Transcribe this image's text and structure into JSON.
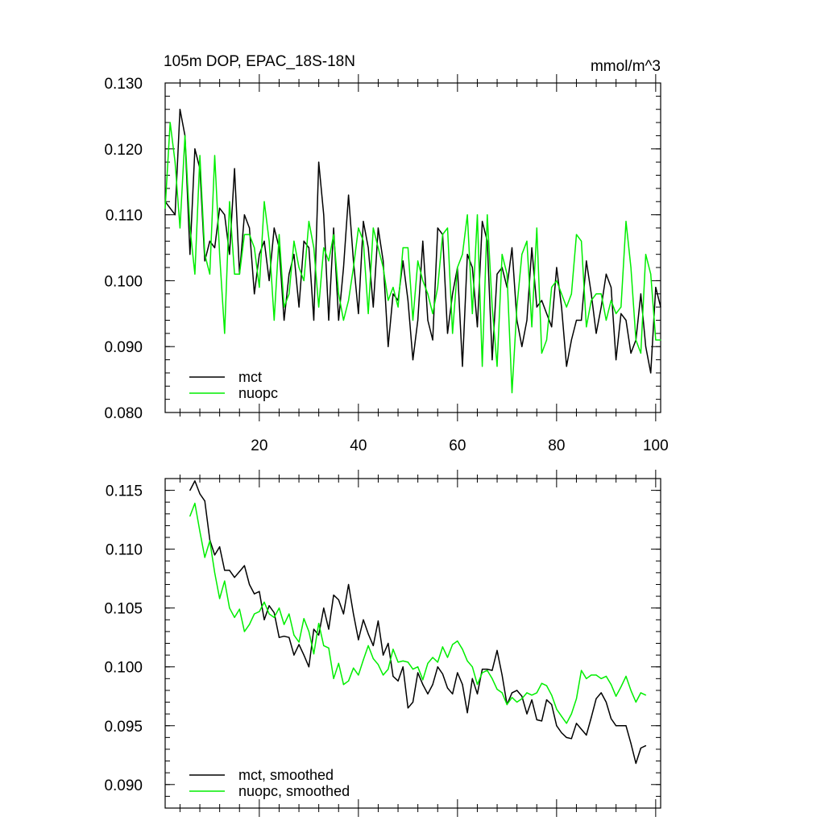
{
  "colors": {
    "mct": "#000000",
    "nuopc": "#00ee00"
  },
  "chart_data": [
    {
      "type": "line",
      "title": "105m DOP, EPAC_18S-18N",
      "units_label": "mmol/m^3",
      "xlim": [
        1,
        101
      ],
      "ylim": [
        0.08,
        0.13
      ],
      "y_ticks": [
        0.08,
        0.09,
        0.1,
        0.11,
        0.12,
        0.13
      ],
      "y_tick_labels": [
        "0.080",
        "0.090",
        "0.100",
        "0.110",
        "0.120",
        "0.130"
      ],
      "x_ticks": [
        20,
        40,
        60,
        80,
        100
      ],
      "x_tick_labels": [
        "20",
        "40",
        "60",
        "80",
        "100"
      ],
      "legend_position": "bottom-left",
      "x": [
        1,
        2,
        3,
        4,
        5,
        6,
        7,
        8,
        9,
        10,
        11,
        12,
        13,
        14,
        15,
        16,
        17,
        18,
        19,
        20,
        21,
        22,
        23,
        24,
        25,
        26,
        27,
        28,
        29,
        30,
        31,
        32,
        33,
        34,
        35,
        36,
        37,
        38,
        39,
        40,
        41,
        42,
        43,
        44,
        45,
        46,
        47,
        48,
        49,
        50,
        51,
        52,
        53,
        54,
        55,
        56,
        57,
        58,
        59,
        60,
        61,
        62,
        63,
        64,
        65,
        66,
        67,
        68,
        69,
        70,
        71,
        72,
        73,
        74,
        75,
        76,
        77,
        78,
        79,
        80,
        81,
        82,
        83,
        84,
        85,
        86,
        87,
        88,
        89,
        90,
        91,
        92,
        93,
        94,
        95,
        96,
        97,
        98,
        99,
        100,
        101
      ],
      "series": [
        {
          "name": "mct",
          "color_key": "mct",
          "values": [
            0.112,
            0.111,
            0.11,
            0.126,
            0.122,
            0.104,
            0.12,
            0.117,
            0.103,
            0.106,
            0.105,
            0.111,
            0.11,
            0.104,
            0.117,
            0.101,
            0.11,
            0.108,
            0.098,
            0.104,
            0.106,
            0.1,
            0.108,
            0.105,
            0.094,
            0.101,
            0.104,
            0.096,
            0.106,
            0.105,
            0.094,
            0.118,
            0.11,
            0.094,
            0.108,
            0.094,
            0.102,
            0.113,
            0.103,
            0.095,
            0.109,
            0.105,
            0.096,
            0.108,
            0.103,
            0.09,
            0.098,
            0.097,
            0.103,
            0.097,
            0.088,
            0.094,
            0.106,
            0.094,
            0.091,
            0.108,
            0.107,
            0.092,
            0.098,
            0.102,
            0.087,
            0.104,
            0.102,
            0.093,
            0.109,
            0.106,
            0.088,
            0.101,
            0.102,
            0.099,
            0.105,
            0.094,
            0.09,
            0.094,
            0.105,
            0.096,
            0.097,
            0.095,
            0.093,
            0.102,
            0.096,
            0.087,
            0.091,
            0.094,
            0.094,
            0.103,
            0.098,
            0.092,
            0.096,
            0.101,
            0.099,
            0.088,
            0.095,
            0.094,
            0.089,
            0.091,
            0.098,
            0.09,
            0.086,
            0.099,
            0.096
          ]
        },
        {
          "name": "nuopc",
          "color_key": "nuopc",
          "values": [
            0.111,
            0.124,
            0.118,
            0.108,
            0.122,
            0.108,
            0.101,
            0.119,
            0.104,
            0.101,
            0.119,
            0.104,
            0.092,
            0.112,
            0.101,
            0.101,
            0.107,
            0.107,
            0.105,
            0.099,
            0.112,
            0.106,
            0.094,
            0.107,
            0.096,
            0.098,
            0.106,
            0.102,
            0.1,
            0.109,
            0.105,
            0.096,
            0.105,
            0.103,
            0.107,
            0.098,
            0.094,
            0.097,
            0.102,
            0.108,
            0.106,
            0.095,
            0.108,
            0.105,
            0.102,
            0.097,
            0.099,
            0.096,
            0.105,
            0.105,
            0.094,
            0.103,
            0.1,
            0.098,
            0.095,
            0.099,
            0.107,
            0.108,
            0.092,
            0.102,
            0.104,
            0.11,
            0.095,
            0.11,
            0.087,
            0.11,
            0.096,
            0.087,
            0.104,
            0.101,
            0.083,
            0.096,
            0.104,
            0.106,
            0.093,
            0.108,
            0.089,
            0.091,
            0.099,
            0.1,
            0.098,
            0.096,
            0.098,
            0.107,
            0.106,
            0.093,
            0.097,
            0.098,
            0.098,
            0.094,
            0.097,
            0.095,
            0.096,
            0.109,
            0.102,
            0.091,
            0.089,
            0.104,
            0.101,
            0.091,
            0.091
          ]
        }
      ]
    },
    {
      "type": "line",
      "title": "",
      "xlim": [
        1,
        101
      ],
      "ylim": [
        0.088,
        0.116
      ],
      "y_ticks": [
        0.09,
        0.095,
        0.1,
        0.105,
        0.11,
        0.115
      ],
      "y_tick_labels": [
        "0.090",
        "0.095",
        "0.100",
        "0.105",
        "0.110",
        "0.115"
      ],
      "x_ticks": [
        20,
        40,
        60,
        80,
        100
      ],
      "x_tick_labels": [],
      "legend_position": "bottom-left",
      "x": [
        6,
        7,
        8,
        9,
        10,
        11,
        12,
        13,
        14,
        15,
        16,
        17,
        18,
        19,
        20,
        21,
        22,
        23,
        24,
        25,
        26,
        27,
        28,
        29,
        30,
        31,
        32,
        33,
        34,
        35,
        36,
        37,
        38,
        39,
        40,
        41,
        42,
        43,
        44,
        45,
        46,
        47,
        48,
        49,
        50,
        51,
        52,
        53,
        54,
        55,
        56,
        57,
        58,
        59,
        60,
        61,
        62,
        63,
        64,
        65,
        66,
        67,
        68,
        69,
        70,
        71,
        72,
        73,
        74,
        75,
        76,
        77,
        78,
        79,
        80,
        81,
        82,
        83,
        84,
        85,
        86,
        87,
        88,
        89,
        90,
        91,
        92,
        93,
        94,
        95,
        96,
        97,
        98
      ],
      "series": [
        {
          "name": "mct, smoothed",
          "color_key": "mct",
          "values": [
            0.115,
            0.1158,
            0.1147,
            0.1141,
            0.1108,
            0.1095,
            0.1102,
            0.1082,
            0.1082,
            0.1076,
            0.1081,
            0.1086,
            0.107,
            0.1062,
            0.1064,
            0.104,
            0.1052,
            0.1046,
            0.1025,
            0.1026,
            0.1025,
            0.101,
            0.1019,
            0.101,
            0.1,
            0.1032,
            0.1027,
            0.105,
            0.1032,
            0.1061,
            0.1057,
            0.1045,
            0.107,
            0.1045,
            0.1023,
            0.104,
            0.1028,
            0.1018,
            0.1039,
            0.101,
            0.102,
            0.0992,
            0.0988,
            0.1,
            0.0965,
            0.097,
            0.0995,
            0.0985,
            0.0977,
            0.0985,
            0.1,
            0.0994,
            0.0982,
            0.0977,
            0.0995,
            0.0985,
            0.0961,
            0.099,
            0.0977,
            0.0998,
            0.0998,
            0.0997,
            0.1014,
            0.0993,
            0.0968,
            0.0978,
            0.098,
            0.0975,
            0.096,
            0.0972,
            0.0955,
            0.0954,
            0.0972,
            0.0968,
            0.095,
            0.0944,
            0.094,
            0.0939,
            0.0952,
            0.0947,
            0.0942,
            0.0957,
            0.0973,
            0.0978,
            0.097,
            0.0956,
            0.095,
            0.095,
            0.095,
            0.0935,
            0.0918,
            0.0931,
            0.0933
          ]
        },
        {
          "name": "nuopc, smoothed",
          "color_key": "nuopc",
          "values": [
            0.1128,
            0.1139,
            0.1115,
            0.1093,
            0.1107,
            0.108,
            0.1058,
            0.1073,
            0.105,
            0.1042,
            0.1049,
            0.103,
            0.1036,
            0.1045,
            0.1047,
            0.1055,
            0.1045,
            0.1042,
            0.105,
            0.1036,
            0.1045,
            0.1027,
            0.1021,
            0.1041,
            0.103,
            0.1011,
            0.1037,
            0.1018,
            0.1016,
            0.099,
            0.1003,
            0.0985,
            0.0988,
            0.0999,
            0.0993,
            0.1006,
            0.1018,
            0.1007,
            0.1002,
            0.0993,
            0.0998,
            0.1015,
            0.1004,
            0.1005,
            0.1004,
            0.0998,
            0.1,
            0.0989,
            0.1003,
            0.1008,
            0.1004,
            0.1017,
            0.1008,
            0.1019,
            0.1022,
            0.1015,
            0.1005,
            0.1,
            0.0985,
            0.0995,
            0.0997,
            0.099,
            0.0981,
            0.0978,
            0.0968,
            0.0974,
            0.097,
            0.0973,
            0.0978,
            0.0976,
            0.0978,
            0.0986,
            0.0984,
            0.0976,
            0.0964,
            0.0958,
            0.0952,
            0.096,
            0.0973,
            0.0997,
            0.099,
            0.0993,
            0.0993,
            0.099,
            0.0992,
            0.0985,
            0.0975,
            0.0983,
            0.0992,
            0.098,
            0.097,
            0.0978,
            0.0976
          ]
        }
      ]
    }
  ]
}
